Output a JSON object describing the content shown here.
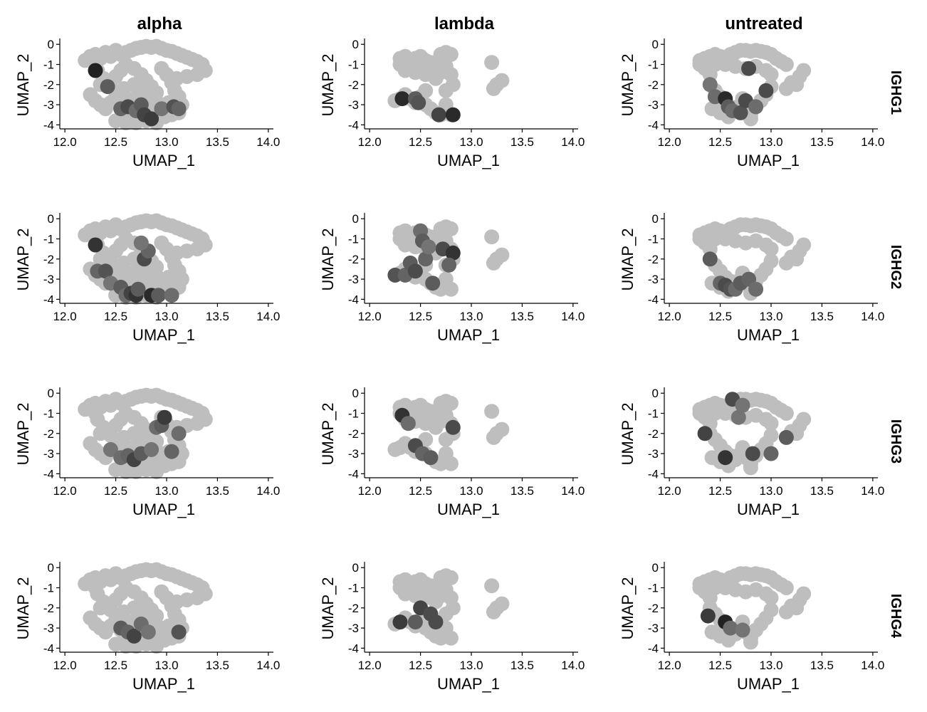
{
  "chart_data": {
    "type": "scatter",
    "xlabel": "UMAP_1",
    "ylabel": "UMAP_2",
    "xlim": [
      11.95,
      14.05
    ],
    "ylim": [
      -4.2,
      0.15
    ],
    "x_ticks": [
      "12.0",
      "12.5",
      "13.0",
      "13.5",
      "14.0"
    ],
    "y_ticks": [
      "0",
      "-1",
      "-2",
      "-3",
      "-4"
    ],
    "column_labels": [
      "alpha",
      "lambda",
      "untreated"
    ],
    "row_labels": [
      "IGHG1",
      "IGHG2",
      "IGHG3",
      "IGHG4"
    ],
    "colors": {
      "low": "#bebebe",
      "high": "#1a1a1a"
    },
    "grid": false,
    "legend": "none",
    "point_sets": {
      "alpha": [
        [
          12.2,
          -0.8
        ],
        [
          12.25,
          -0.6
        ],
        [
          12.3,
          -0.5
        ],
        [
          12.35,
          -0.7
        ],
        [
          12.4,
          -0.4
        ],
        [
          12.45,
          -0.6
        ],
        [
          12.5,
          -0.3
        ],
        [
          12.55,
          -0.5
        ],
        [
          12.6,
          -0.4
        ],
        [
          12.65,
          -0.3
        ],
        [
          12.7,
          -0.2
        ],
        [
          12.75,
          -0.15
        ],
        [
          12.8,
          -0.1
        ],
        [
          12.85,
          -0.15
        ],
        [
          12.9,
          -0.1
        ],
        [
          12.95,
          -0.2
        ],
        [
          13.0,
          -0.3
        ],
        [
          13.05,
          -0.35
        ],
        [
          13.1,
          -0.45
        ],
        [
          13.15,
          -0.55
        ],
        [
          13.2,
          -0.65
        ],
        [
          13.25,
          -0.75
        ],
        [
          13.3,
          -0.85
        ],
        [
          13.35,
          -1.0
        ],
        [
          13.38,
          -1.3
        ],
        [
          13.3,
          -1.5
        ],
        [
          13.2,
          -1.6
        ],
        [
          13.1,
          -1.7
        ],
        [
          12.3,
          -1.0
        ],
        [
          12.32,
          -1.3
        ],
        [
          12.38,
          -1.7
        ],
        [
          12.35,
          -2.0
        ],
        [
          12.45,
          -2.1
        ],
        [
          12.5,
          -1.6
        ],
        [
          12.55,
          -1.3
        ],
        [
          12.6,
          -1.0
        ],
        [
          12.68,
          -1.2
        ],
        [
          12.75,
          -1.5
        ],
        [
          12.8,
          -1.8
        ],
        [
          12.85,
          -2.1
        ],
        [
          12.9,
          -2.4
        ],
        [
          12.95,
          -1.2
        ],
        [
          13.0,
          -1.5
        ],
        [
          13.05,
          -1.9
        ],
        [
          13.08,
          -2.3
        ],
        [
          13.12,
          -2.6
        ],
        [
          12.25,
          -2.5
        ],
        [
          12.3,
          -2.8
        ],
        [
          12.35,
          -3.0
        ],
        [
          12.4,
          -3.2
        ],
        [
          12.45,
          -2.9
        ],
        [
          12.5,
          -2.6
        ],
        [
          12.55,
          -3.1
        ],
        [
          12.6,
          -3.4
        ],
        [
          12.62,
          -2.7
        ],
        [
          12.65,
          -3.6
        ],
        [
          12.7,
          -3.2
        ],
        [
          12.72,
          -2.5
        ],
        [
          12.75,
          -3.7
        ],
        [
          12.78,
          -3.0
        ],
        [
          12.8,
          -2.7
        ],
        [
          12.82,
          -3.5
        ],
        [
          12.85,
          -3.2
        ],
        [
          12.88,
          -2.9
        ],
        [
          12.9,
          -3.7
        ],
        [
          12.92,
          -3.3
        ],
        [
          12.95,
          -3.0
        ],
        [
          12.98,
          -3.6
        ],
        [
          13.0,
          -3.3
        ],
        [
          13.02,
          -2.9
        ],
        [
          13.05,
          -3.5
        ],
        [
          13.08,
          -3.1
        ],
        [
          13.12,
          -3.4
        ],
        [
          13.15,
          -3.0
        ],
        [
          12.58,
          -2.2
        ],
        [
          12.68,
          -2.0
        ],
        [
          12.78,
          -2.3
        ],
        [
          12.5,
          -3.8
        ],
        [
          12.6,
          -3.9
        ],
        [
          12.7,
          -3.9
        ],
        [
          12.8,
          -3.8
        ],
        [
          12.9,
          -3.9
        ]
      ],
      "lambda": [
        [
          12.3,
          -0.7
        ],
        [
          12.35,
          -0.6
        ],
        [
          12.4,
          -0.8
        ],
        [
          12.45,
          -0.7
        ],
        [
          12.5,
          -0.6
        ],
        [
          12.55,
          -0.8
        ],
        [
          12.6,
          -0.9
        ],
        [
          12.65,
          -1.0
        ],
        [
          12.7,
          -0.5
        ],
        [
          12.75,
          -0.4
        ],
        [
          12.8,
          -0.5
        ],
        [
          12.3,
          -1.0
        ],
        [
          12.35,
          -1.3
        ],
        [
          12.4,
          -1.1
        ],
        [
          12.45,
          -1.4
        ],
        [
          12.5,
          -1.2
        ],
        [
          12.55,
          -1.5
        ],
        [
          12.6,
          -1.3
        ],
        [
          12.65,
          -1.7
        ],
        [
          12.7,
          -1.4
        ],
        [
          12.75,
          -1.1
        ],
        [
          12.8,
          -1.5
        ],
        [
          12.82,
          -2.0
        ],
        [
          12.75,
          -2.3
        ],
        [
          12.25,
          -2.8
        ],
        [
          12.3,
          -2.7
        ],
        [
          12.35,
          -2.5
        ],
        [
          12.4,
          -2.7
        ],
        [
          12.45,
          -2.9
        ],
        [
          12.5,
          -2.6
        ],
        [
          12.55,
          -3.0
        ],
        [
          12.6,
          -3.2
        ],
        [
          12.65,
          -3.4
        ],
        [
          12.7,
          -3.5
        ],
        [
          12.8,
          -3.5
        ],
        [
          12.75,
          -3.0
        ],
        [
          12.55,
          -2.3
        ],
        [
          13.2,
          -0.9
        ],
        [
          13.3,
          -1.8
        ],
        [
          13.25,
          -2.0
        ],
        [
          13.22,
          -2.2
        ]
      ],
      "untreated": [
        [
          12.3,
          -0.8
        ],
        [
          12.35,
          -0.7
        ],
        [
          12.4,
          -0.6
        ],
        [
          12.45,
          -0.5
        ],
        [
          12.5,
          -0.6
        ],
        [
          12.55,
          -0.7
        ],
        [
          12.6,
          -0.5
        ],
        [
          12.65,
          -0.4
        ],
        [
          12.7,
          -0.3
        ],
        [
          12.75,
          -0.3
        ],
        [
          12.8,
          -0.35
        ],
        [
          12.85,
          -0.3
        ],
        [
          12.9,
          -0.35
        ],
        [
          12.95,
          -0.4
        ],
        [
          13.0,
          -0.5
        ],
        [
          13.05,
          -0.7
        ],
        [
          13.1,
          -0.85
        ],
        [
          13.15,
          -1.0
        ],
        [
          12.3,
          -1.0
        ],
        [
          12.35,
          -1.2
        ],
        [
          12.4,
          -1.5
        ],
        [
          12.45,
          -1.0
        ],
        [
          12.5,
          -0.9
        ],
        [
          12.55,
          -1.0
        ],
        [
          12.65,
          -1.1
        ],
        [
          12.75,
          -1.2
        ],
        [
          12.85,
          -1.1
        ],
        [
          12.95,
          -1.3
        ],
        [
          13.0,
          -1.5
        ],
        [
          12.4,
          -2.0
        ],
        [
          12.45,
          -2.3
        ],
        [
          12.5,
          -2.6
        ],
        [
          12.55,
          -2.9
        ],
        [
          12.6,
          -3.1
        ],
        [
          12.65,
          -3.3
        ],
        [
          12.7,
          -3.0
        ],
        [
          12.75,
          -3.2
        ],
        [
          12.8,
          -3.5
        ],
        [
          12.85,
          -3.1
        ],
        [
          12.9,
          -2.8
        ],
        [
          12.95,
          -2.5
        ],
        [
          13.0,
          -2.1
        ],
        [
          12.42,
          -3.2
        ],
        [
          12.5,
          -3.4
        ],
        [
          12.58,
          -3.6
        ],
        [
          12.72,
          -2.7
        ],
        [
          12.8,
          -3.7
        ],
        [
          13.15,
          -2.2
        ],
        [
          13.2,
          -1.9
        ],
        [
          13.28,
          -1.6
        ],
        [
          13.32,
          -1.3
        ],
        [
          13.25,
          -2.0
        ]
      ]
    },
    "panels": [
      {
        "column": "alpha",
        "row": "IGHG1",
        "dark": [
          [
            12.3,
            -1.3,
            0.95
          ],
          [
            12.42,
            -2.1,
            0.6
          ],
          [
            12.55,
            -3.2,
            0.55
          ],
          [
            12.62,
            -3.1,
            0.7
          ],
          [
            12.7,
            -3.3,
            0.5
          ],
          [
            12.75,
            -3.0,
            0.6
          ],
          [
            12.78,
            -3.5,
            0.75
          ],
          [
            12.85,
            -3.7,
            0.8
          ],
          [
            12.95,
            -3.2,
            0.45
          ],
          [
            13.07,
            -3.1,
            0.65
          ],
          [
            13.12,
            -3.2,
            0.55
          ]
        ]
      },
      {
        "column": "lambda",
        "row": "IGHG1",
        "dark": [
          [
            12.32,
            -2.7,
            0.9
          ],
          [
            12.45,
            -2.7,
            0.6
          ],
          [
            12.48,
            -2.9,
            0.65
          ],
          [
            12.68,
            -3.5,
            0.75
          ],
          [
            12.82,
            -3.5,
            0.9
          ]
        ]
      },
      {
        "column": "untreated",
        "row": "IGHG1",
        "dark": [
          [
            12.4,
            -2.0,
            0.45
          ],
          [
            12.45,
            -2.6,
            0.5
          ],
          [
            12.55,
            -2.7,
            0.9
          ],
          [
            12.58,
            -3.1,
            0.6
          ],
          [
            12.62,
            -3.3,
            0.5
          ],
          [
            12.7,
            -3.4,
            0.65
          ],
          [
            12.75,
            -2.8,
            0.7
          ],
          [
            12.85,
            -3.1,
            0.5
          ],
          [
            12.78,
            -1.2,
            0.7
          ],
          [
            12.95,
            -2.3,
            0.7
          ]
        ]
      },
      {
        "column": "alpha",
        "row": "IGHG2",
        "dark": [
          [
            12.3,
            -1.3,
            0.85
          ],
          [
            12.32,
            -2.6,
            0.55
          ],
          [
            12.4,
            -2.6,
            0.65
          ],
          [
            12.45,
            -3.2,
            0.45
          ],
          [
            12.55,
            -3.4,
            0.6
          ],
          [
            12.6,
            -3.8,
            0.5
          ],
          [
            12.65,
            -3.7,
            0.75
          ],
          [
            12.7,
            -3.8,
            0.85
          ],
          [
            12.72,
            -3.5,
            0.6
          ],
          [
            12.78,
            -2.0,
            0.7
          ],
          [
            12.82,
            -1.6,
            0.55
          ],
          [
            12.85,
            -3.8,
            0.9
          ],
          [
            12.92,
            -3.8,
            0.6
          ],
          [
            12.75,
            -1.2,
            0.45
          ],
          [
            13.05,
            -3.8,
            0.5
          ]
        ]
      },
      {
        "column": "lambda",
        "row": "IGHG2",
        "dark": [
          [
            12.25,
            -2.8,
            0.65
          ],
          [
            12.35,
            -2.8,
            0.55
          ],
          [
            12.4,
            -2.2,
            0.6
          ],
          [
            12.45,
            -2.6,
            0.7
          ],
          [
            12.5,
            -0.6,
            0.5
          ],
          [
            12.52,
            -1.1,
            0.6
          ],
          [
            12.55,
            -2.0,
            0.55
          ],
          [
            12.62,
            -3.2,
            0.6
          ],
          [
            12.72,
            -1.5,
            0.7
          ],
          [
            12.82,
            -1.7,
            0.85
          ],
          [
            12.78,
            -2.3,
            0.55
          ],
          [
            12.58,
            -1.4,
            0.45
          ]
        ]
      },
      {
        "column": "untreated",
        "row": "IGHG2",
        "dark": [
          [
            12.4,
            -2.0,
            0.6
          ],
          [
            12.5,
            -3.2,
            0.55
          ],
          [
            12.55,
            -3.3,
            0.7
          ],
          [
            12.6,
            -3.5,
            0.65
          ],
          [
            12.65,
            -3.5,
            0.5
          ],
          [
            12.7,
            -3.2,
            0.6
          ],
          [
            12.78,
            -3.0,
            0.55
          ],
          [
            12.85,
            -3.5,
            0.5
          ]
        ]
      },
      {
        "column": "alpha",
        "row": "IGHG3",
        "dark": [
          [
            12.45,
            -2.8,
            0.45
          ],
          [
            12.55,
            -3.2,
            0.5
          ],
          [
            12.62,
            -3.1,
            0.55
          ],
          [
            12.68,
            -3.3,
            0.75
          ],
          [
            12.75,
            -3.0,
            0.6
          ],
          [
            12.85,
            -2.8,
            0.45
          ],
          [
            12.9,
            -1.7,
            0.5
          ],
          [
            12.95,
            -1.6,
            0.6
          ],
          [
            12.98,
            -1.2,
            0.8
          ],
          [
            13.05,
            -2.9,
            0.55
          ],
          [
            13.12,
            -2.0,
            0.5
          ]
        ]
      },
      {
        "column": "lambda",
        "row": "IGHG3",
        "dark": [
          [
            12.32,
            -1.1,
            0.85
          ],
          [
            12.38,
            -1.5,
            0.5
          ],
          [
            12.45,
            -2.6,
            0.7
          ],
          [
            12.52,
            -3.0,
            0.55
          ],
          [
            12.6,
            -3.2,
            0.6
          ],
          [
            12.82,
            -1.7,
            0.7
          ]
        ]
      },
      {
        "column": "untreated",
        "row": "IGHG3",
        "dark": [
          [
            12.35,
            -2.0,
            0.75
          ],
          [
            12.55,
            -3.2,
            0.85
          ],
          [
            12.62,
            -0.3,
            0.7
          ],
          [
            12.72,
            -0.6,
            0.45
          ],
          [
            12.68,
            -1.2,
            0.45
          ],
          [
            12.82,
            -3.0,
            0.7
          ],
          [
            13.0,
            -3.0,
            0.55
          ],
          [
            13.15,
            -2.2,
            0.6
          ]
        ]
      },
      {
        "column": "alpha",
        "row": "IGHG4",
        "dark": [
          [
            12.55,
            -3.0,
            0.6
          ],
          [
            12.62,
            -3.2,
            0.55
          ],
          [
            12.68,
            -3.4,
            0.75
          ],
          [
            12.75,
            -2.8,
            0.5
          ],
          [
            12.82,
            -3.2,
            0.45
          ],
          [
            13.12,
            -3.2,
            0.65
          ]
        ]
      },
      {
        "column": "lambda",
        "row": "IGHG4",
        "dark": [
          [
            12.3,
            -2.7,
            0.8
          ],
          [
            12.45,
            -2.7,
            0.6
          ],
          [
            12.5,
            -2.0,
            0.75
          ],
          [
            12.6,
            -2.3,
            0.7
          ],
          [
            12.65,
            -2.7,
            0.7
          ]
        ]
      },
      {
        "column": "untreated",
        "row": "IGHG4",
        "dark": [
          [
            12.38,
            -2.4,
            0.8
          ],
          [
            12.55,
            -2.7,
            0.95
          ],
          [
            12.6,
            -3.0,
            0.5
          ],
          [
            12.72,
            -3.1,
            0.45
          ]
        ]
      }
    ]
  }
}
